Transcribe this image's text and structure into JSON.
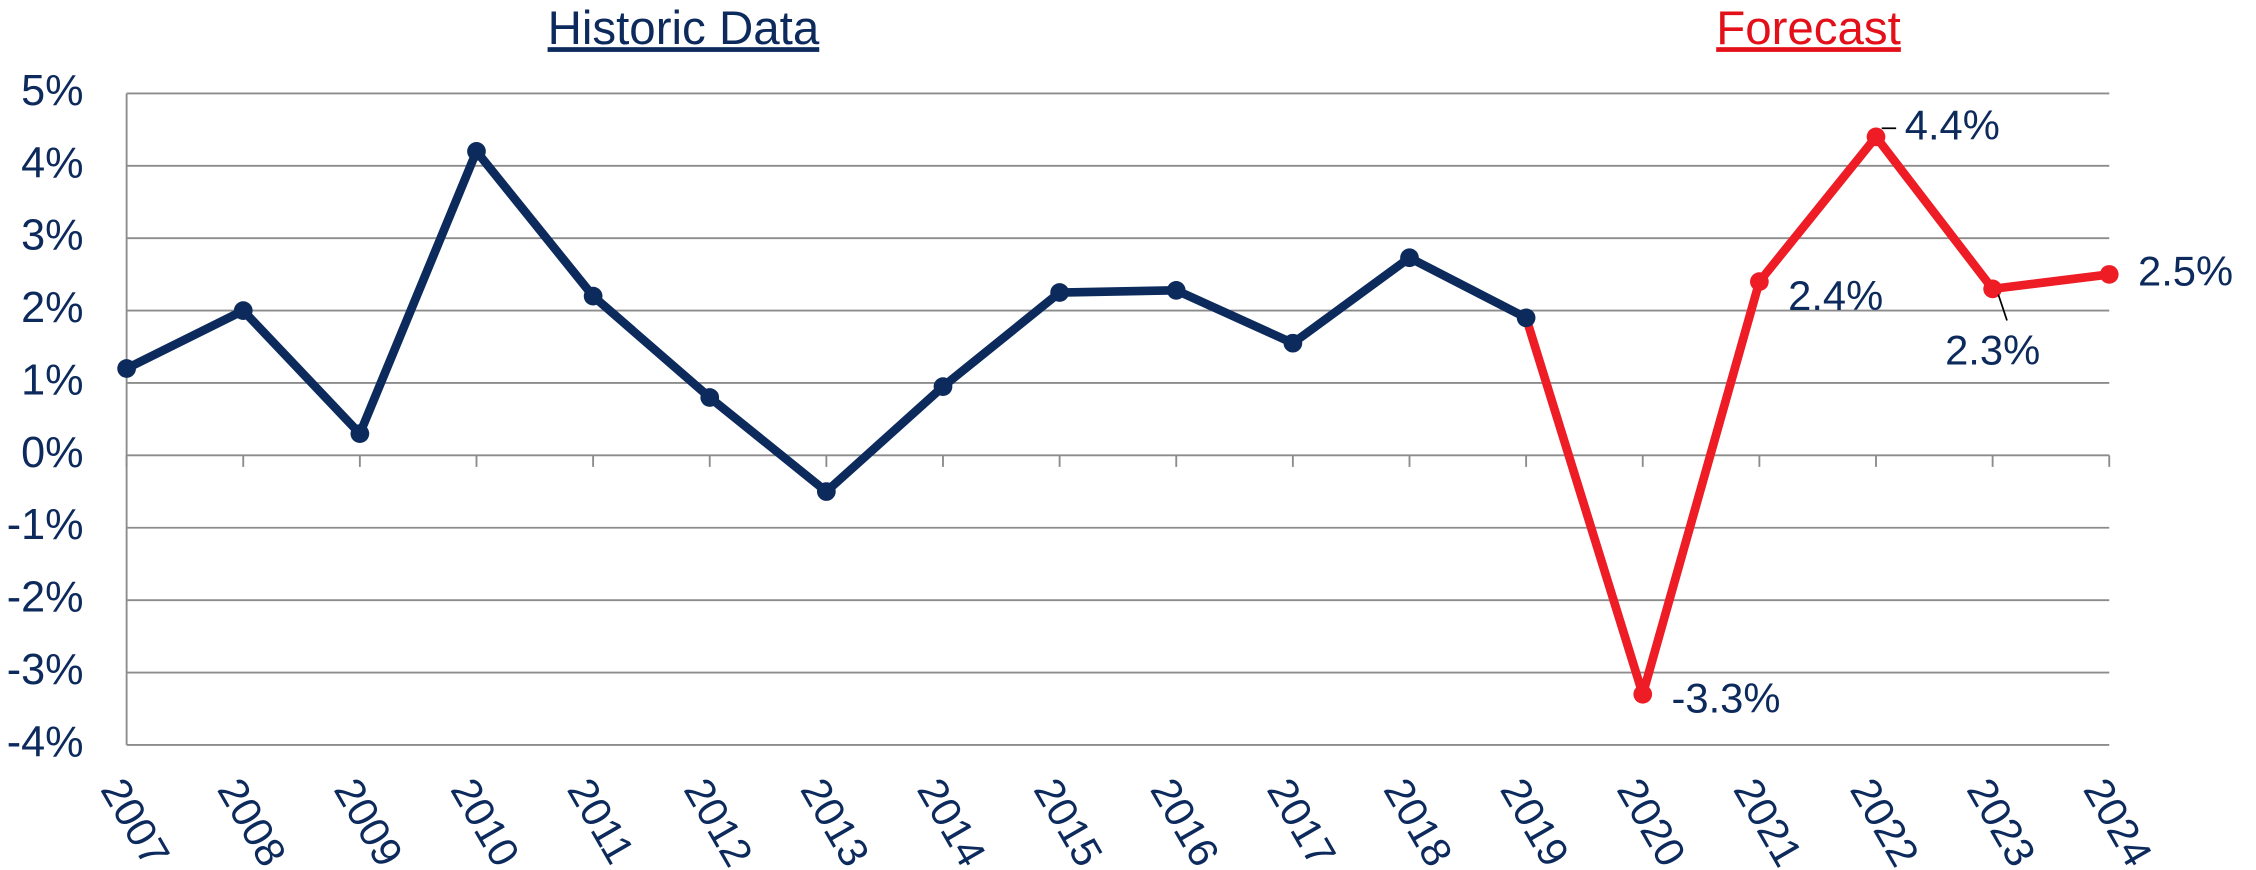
{
  "chart_data": {
    "type": "line",
    "categories": [
      "2007",
      "2008",
      "2009",
      "2010",
      "2011",
      "2012",
      "2013",
      "2014",
      "2015",
      "2016",
      "2017",
      "2018",
      "2019",
      "2020",
      "2021",
      "2022",
      "2023",
      "2024"
    ],
    "series": [
      {
        "name": "Historic Data",
        "color": "#0d2a5c",
        "values": [
          1.2,
          2.0,
          0.3,
          4.2,
          2.2,
          0.8,
          -0.5,
          0.95,
          2.25,
          2.28,
          1.55,
          2.73,
          1.9,
          null,
          null,
          null,
          null,
          null
        ]
      },
      {
        "name": "Forecast",
        "color": "#ee1c25",
        "values": [
          null,
          null,
          null,
          null,
          null,
          null,
          null,
          null,
          null,
          null,
          null,
          null,
          1.9,
          -3.3,
          2.4,
          4.4,
          2.3,
          2.5
        ],
        "value_labels": [
          null,
          null,
          null,
          null,
          null,
          null,
          null,
          null,
          null,
          null,
          null,
          null,
          null,
          "-3.3%",
          "2.4%",
          "4.4%",
          "2.3%",
          "2.5%"
        ]
      }
    ],
    "ylim": [
      -4,
      5
    ],
    "yticks": [
      {
        "value": -4,
        "label": "-4%"
      },
      {
        "value": -3,
        "label": "-3%"
      },
      {
        "value": -2,
        "label": "-2%"
      },
      {
        "value": -1,
        "label": "-1%"
      },
      {
        "value": 0,
        "label": "0%"
      },
      {
        "value": 1,
        "label": "1%"
      },
      {
        "value": 2,
        "label": "2%"
      },
      {
        "value": 3,
        "label": "3%"
      },
      {
        "value": 4,
        "label": "4%"
      },
      {
        "value": 5,
        "label": "5%"
      }
    ],
    "grid": true
  }
}
